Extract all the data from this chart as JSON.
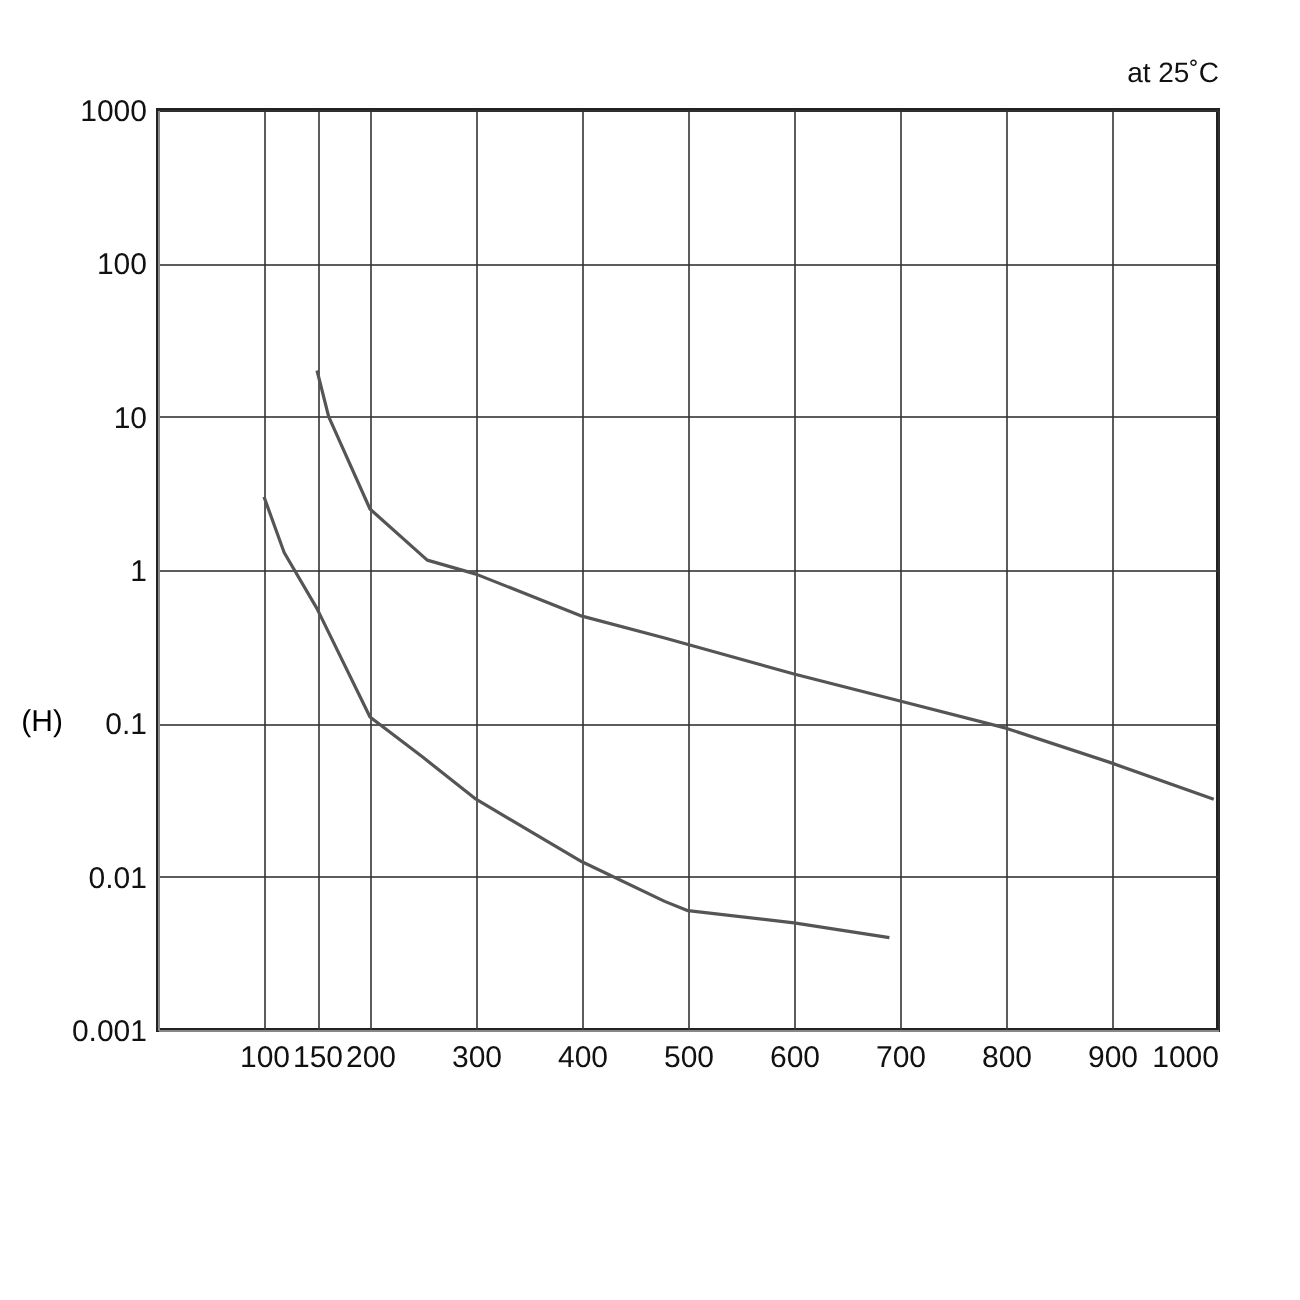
{
  "chart_data": {
    "type": "line",
    "ylabel": "(H)",
    "annotations": [
      "at 25˚C"
    ],
    "xlim": [
      0,
      1000
    ],
    "xticks": [
      100,
      150,
      200,
      300,
      400,
      500,
      600,
      700,
      800,
      900,
      1000
    ],
    "ylim": [
      0.001,
      1000
    ],
    "yticks": [
      0.001,
      0.01,
      0.1,
      1,
      10,
      100,
      1000
    ],
    "log": "y",
    "grid": true,
    "line_style": "solid",
    "series": [
      {
        "color": "#555555",
        "x": [
          100,
          119,
          150,
          200,
          250,
          300,
          400,
          478,
          500,
          600,
          690
        ],
        "values": [
          3,
          1.3,
          0.56,
          0.11,
          0.06,
          0.032,
          0.0125,
          0.0069,
          0.006,
          0.005,
          0.004
        ]
      },
      {
        "color": "#555555",
        "x": [
          150,
          161,
          200,
          254,
          300,
          400,
          478,
          600,
          700,
          800,
          900,
          996
        ],
        "values": [
          20,
          10,
          2.5,
          1.16,
          0.94,
          0.5,
          0.36,
          0.21,
          0.14,
          0.093,
          0.055,
          0.032
        ]
      }
    ]
  }
}
